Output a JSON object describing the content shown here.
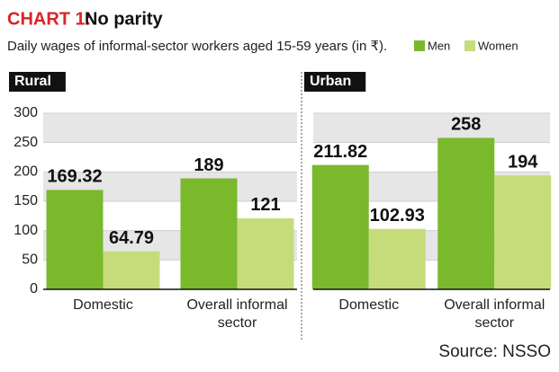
{
  "header": {
    "label": "CHART 1:",
    "title": "No parity",
    "subtitle": "Daily wages of informal-sector workers aged 15-59 years (in ₹)."
  },
  "chart_data": [
    {
      "type": "bar",
      "title": "Rural",
      "categories": [
        "Domestic",
        "Overall informal sector"
      ],
      "series": [
        {
          "name": "Men",
          "color": "#7ab92c",
          "values": [
            169.32,
            189
          ]
        },
        {
          "name": "Women",
          "color": "#c6dc7b",
          "values": [
            64.79,
            121
          ]
        }
      ],
      "ylim": [
        0,
        300
      ],
      "yticks": [
        0,
        50,
        100,
        150,
        200,
        250,
        300
      ],
      "grid": true
    },
    {
      "type": "bar",
      "title": "Urban",
      "categories": [
        "Domestic",
        "Overall informal sector"
      ],
      "series": [
        {
          "color": "#7ab92c",
          "values": [
            211.82,
            258
          ]
        },
        {
          "color": "#c6dc7b",
          "values": [
            102.93,
            194
          ]
        }
      ],
      "ylim": [
        0,
        300
      ],
      "yticks": [
        0,
        50,
        100,
        150,
        200,
        250,
        300
      ],
      "grid": true
    }
  ],
  "source": "Source: NSSO"
}
